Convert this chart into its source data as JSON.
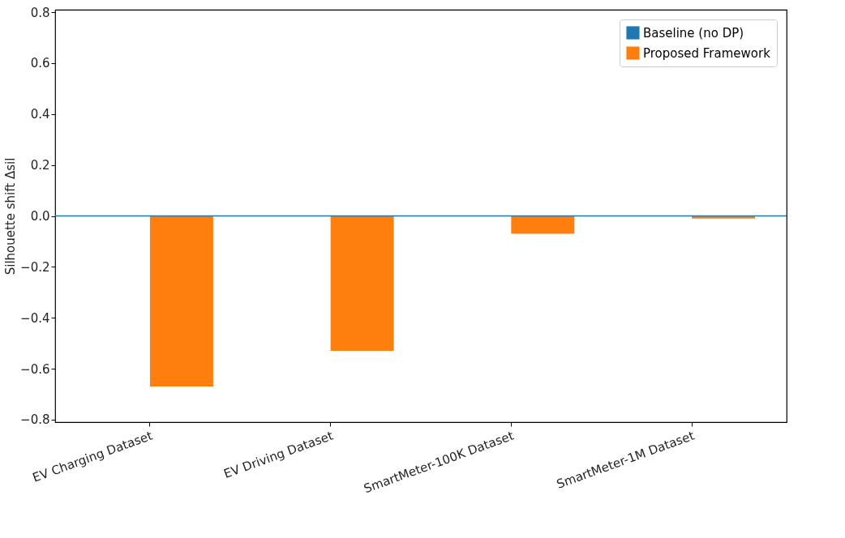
{
  "chart_data": {
    "type": "bar",
    "ylabel": "Silhouette shift Δsil",
    "categories": [
      "EV Charging Dataset",
      "EV Driving Dataset",
      "SmartMeter-100K Dataset",
      "SmartMeter-1M Dataset"
    ],
    "series": [
      {
        "name": "Baseline (no DP)",
        "color": "#1f77b4",
        "values": [
          0,
          0,
          0,
          0
        ]
      },
      {
        "name": "Proposed Framework",
        "color": "#ff7f0e",
        "values": [
          -0.67,
          -0.53,
          -0.07,
          -0.01
        ]
      }
    ],
    "ylim": [
      -0.81,
      0.81
    ],
    "yticks": [
      {
        "value": -0.8,
        "label": "−0.8"
      },
      {
        "value": -0.6,
        "label": "−0.6"
      },
      {
        "value": -0.4,
        "label": "−0.4"
      },
      {
        "value": -0.2,
        "label": "−0.2"
      },
      {
        "value": 0,
        "label": "0.0"
      },
      {
        "value": 0.2,
        "label": "0.2"
      },
      {
        "value": 0.4,
        "label": "0.4"
      },
      {
        "value": 0.6,
        "label": "0.6"
      },
      {
        "value": 0.8,
        "label": "0.8"
      }
    ],
    "ref_lines": [
      {
        "axis": "y",
        "value": 0,
        "color": "#1f77b4"
      }
    ],
    "legend": "top right",
    "grid": false
  }
}
